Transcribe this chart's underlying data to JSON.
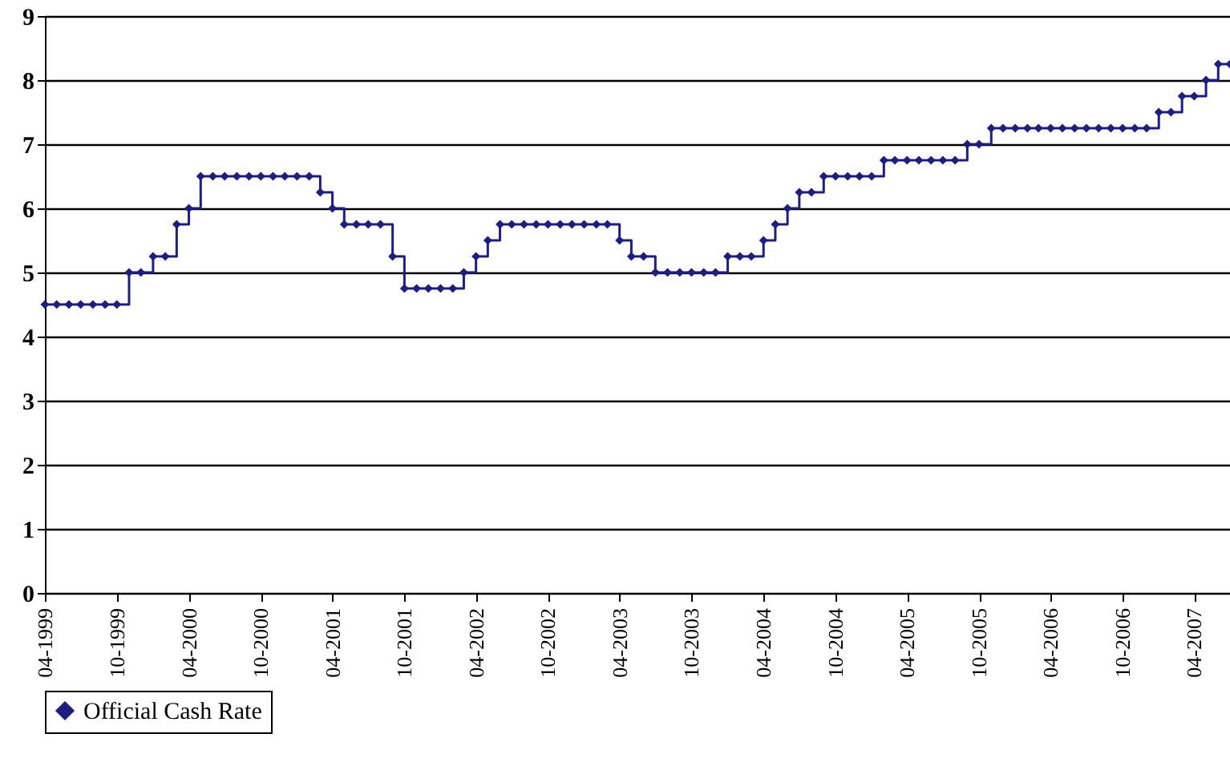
{
  "chart_data": {
    "type": "step",
    "x": [
      "1999-04",
      "1999-05",
      "1999-06",
      "1999-07",
      "1999-08",
      "1999-09",
      "1999-10",
      "1999-11",
      "1999-12",
      "2000-01",
      "2000-02",
      "2000-03",
      "2000-04",
      "2000-05",
      "2000-06",
      "2000-07",
      "2000-08",
      "2000-09",
      "2000-10",
      "2000-11",
      "2000-12",
      "2001-01",
      "2001-02",
      "2001-03",
      "2001-04",
      "2001-05",
      "2001-06",
      "2001-07",
      "2001-08",
      "2001-09",
      "2001-10",
      "2001-11",
      "2001-12",
      "2002-01",
      "2002-02",
      "2002-03",
      "2002-04",
      "2002-05",
      "2002-06",
      "2002-07",
      "2002-08",
      "2002-09",
      "2002-10",
      "2002-11",
      "2002-12",
      "2003-01",
      "2003-02",
      "2003-03",
      "2003-04",
      "2003-05",
      "2003-06",
      "2003-07",
      "2003-08",
      "2003-09",
      "2003-10",
      "2003-11",
      "2003-12",
      "2004-01",
      "2004-02",
      "2004-03",
      "2004-04",
      "2004-05",
      "2004-06",
      "2004-07",
      "2004-08",
      "2004-09",
      "2004-10",
      "2004-11",
      "2004-12",
      "2005-01",
      "2005-02",
      "2005-03",
      "2005-04",
      "2005-05",
      "2005-06",
      "2005-07",
      "2005-08",
      "2005-09",
      "2005-10",
      "2005-11",
      "2005-12",
      "2006-01",
      "2006-02",
      "2006-03",
      "2006-04",
      "2006-05",
      "2006-06",
      "2006-07",
      "2006-08",
      "2006-09",
      "2006-10",
      "2006-11",
      "2006-12",
      "2007-01",
      "2007-02",
      "2007-03",
      "2007-04",
      "2007-05",
      "2007-06",
      "2007-07"
    ],
    "series": [
      {
        "name": "Official Cash Rate",
        "color": "#1c1f80",
        "values": [
          4.5,
          4.5,
          4.5,
          4.5,
          4.5,
          4.5,
          4.5,
          5,
          5,
          5.25,
          5.25,
          5.75,
          6,
          6.5,
          6.5,
          6.5,
          6.5,
          6.5,
          6.5,
          6.5,
          6.5,
          6.5,
          6.5,
          6.25,
          6,
          5.75,
          5.75,
          5.75,
          5.75,
          5.25,
          4.75,
          4.75,
          4.75,
          4.75,
          4.75,
          5,
          5.25,
          5.5,
          5.75,
          5.75,
          5.75,
          5.75,
          5.75,
          5.75,
          5.75,
          5.75,
          5.75,
          5.75,
          5.5,
          5.25,
          5.25,
          5,
          5,
          5,
          5,
          5,
          5,
          5.25,
          5.25,
          5.25,
          5.5,
          5.75,
          6,
          6.25,
          6.25,
          6.5,
          6.5,
          6.5,
          6.5,
          6.5,
          6.75,
          6.75,
          6.75,
          6.75,
          6.75,
          6.75,
          6.75,
          7,
          7,
          7.25,
          7.25,
          7.25,
          7.25,
          7.25,
          7.25,
          7.25,
          7.25,
          7.25,
          7.25,
          7.25,
          7.25,
          7.25,
          7.25,
          7.5,
          7.5,
          7.75,
          7.75,
          8,
          8.25,
          8.25
        ]
      }
    ],
    "xlim": [
      "1999-04",
      "2007-07"
    ],
    "xticks": [
      {
        "value": "1999-04",
        "label": "04-1999"
      },
      {
        "value": "1999-10",
        "label": "10-1999"
      },
      {
        "value": "2000-04",
        "label": "04-2000"
      },
      {
        "value": "2000-10",
        "label": "10-2000"
      },
      {
        "value": "2001-04",
        "label": "04-2001"
      },
      {
        "value": "2001-10",
        "label": "10-2001"
      },
      {
        "value": "2002-04",
        "label": "04-2002"
      },
      {
        "value": "2002-10",
        "label": "10-2002"
      },
      {
        "value": "2003-04",
        "label": "04-2003"
      },
      {
        "value": "2003-10",
        "label": "10-2003"
      },
      {
        "value": "2004-04",
        "label": "04-2004"
      },
      {
        "value": "2004-10",
        "label": "10-2004"
      },
      {
        "value": "2005-04",
        "label": "04-2005"
      },
      {
        "value": "2005-10",
        "label": "10-2005"
      },
      {
        "value": "2006-04",
        "label": "04-2006"
      },
      {
        "value": "2006-10",
        "label": "10-2006"
      },
      {
        "value": "2007-04",
        "label": "04-2007"
      }
    ],
    "ylim": [
      0,
      9
    ],
    "yticks": [
      0,
      1,
      2,
      3,
      4,
      5,
      6,
      7,
      8,
      9
    ],
    "grid": "y",
    "legend": "bottom",
    "marker": "diamond",
    "line_style": "solid"
  }
}
